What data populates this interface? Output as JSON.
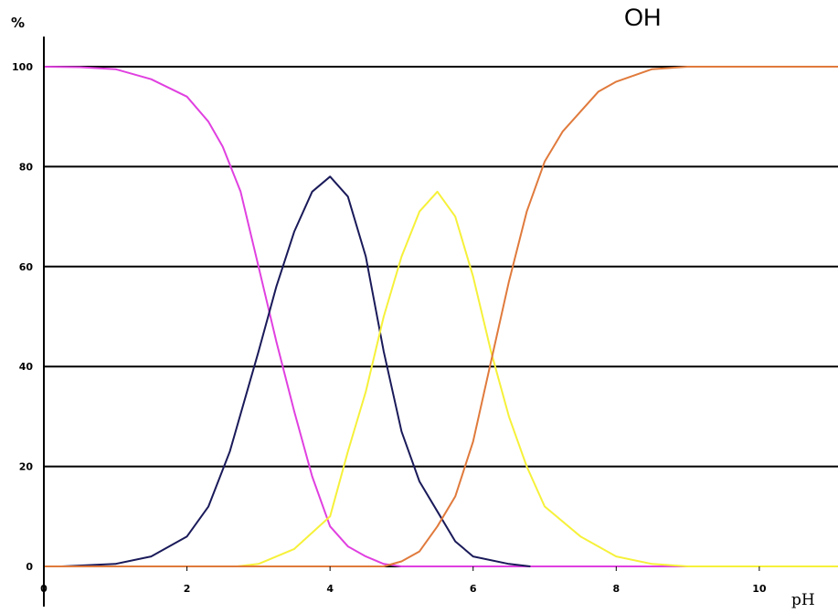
{
  "chart_data": {
    "type": "line",
    "title": "",
    "annotation": "OH",
    "ylabel": "%",
    "xlabel": "pH",
    "xlim": [
      0,
      11.1
    ],
    "ylim": [
      0,
      100
    ],
    "xticks": [
      0,
      2,
      4,
      6,
      8,
      10
    ],
    "yticks": [
      0,
      20,
      40,
      60,
      80,
      100
    ],
    "grid": true,
    "series": [
      {
        "color": "#e040e0",
        "points": [
          [
            0,
            100
          ],
          [
            0.5,
            99.9
          ],
          [
            1,
            99.5
          ],
          [
            1.5,
            97.5
          ],
          [
            2,
            94
          ],
          [
            2.3,
            89
          ],
          [
            2.5,
            84
          ],
          [
            2.75,
            75
          ],
          [
            3,
            60
          ],
          [
            3.25,
            45
          ],
          [
            3.5,
            31
          ],
          [
            3.75,
            18
          ],
          [
            4,
            8
          ],
          [
            4.25,
            4
          ],
          [
            4.5,
            2
          ],
          [
            4.75,
            0.5
          ],
          [
            5,
            0
          ],
          [
            6,
            0
          ],
          [
            7,
            0
          ],
          [
            8,
            0
          ],
          [
            9,
            0
          ],
          [
            9.3,
            0
          ]
        ]
      },
      {
        "color": "#1a1a5a",
        "points": [
          [
            0.25,
            0
          ],
          [
            1,
            0.5
          ],
          [
            1.5,
            2
          ],
          [
            2,
            6
          ],
          [
            2.3,
            12
          ],
          [
            2.6,
            23
          ],
          [
            3,
            43
          ],
          [
            3.25,
            56
          ],
          [
            3.5,
            67
          ],
          [
            3.75,
            75
          ],
          [
            4,
            78
          ],
          [
            4.25,
            74
          ],
          [
            4.5,
            62
          ],
          [
            4.75,
            43
          ],
          [
            5,
            27
          ],
          [
            5.25,
            17
          ],
          [
            5.5,
            11
          ],
          [
            5.75,
            5
          ],
          [
            6,
            2
          ],
          [
            6.5,
            0.5
          ],
          [
            6.8,
            0
          ]
        ]
      },
      {
        "color": "#f6f13a",
        "points": [
          [
            4.4,
            0
          ],
          [
            2.7,
            0
          ],
          [
            3,
            0.5
          ],
          [
            3.5,
            3.5
          ],
          [
            4,
            10
          ],
          [
            4.25,
            23
          ],
          [
            4.5,
            35
          ],
          [
            4.75,
            50
          ],
          [
            5,
            62
          ],
          [
            5.25,
            71
          ],
          [
            5.5,
            75
          ],
          [
            5.75,
            70
          ],
          [
            6,
            58
          ],
          [
            6.25,
            43
          ],
          [
            6.5,
            30
          ],
          [
            6.75,
            20
          ],
          [
            7,
            12
          ],
          [
            7.5,
            6
          ],
          [
            8,
            2
          ],
          [
            8.5,
            0.5
          ],
          [
            9,
            0
          ],
          [
            11.1,
            0
          ]
        ]
      },
      {
        "color": "#e07a3c",
        "points": [
          [
            0,
            0
          ],
          [
            4.75,
            0
          ],
          [
            5,
            1
          ],
          [
            5.25,
            3
          ],
          [
            5.5,
            8
          ],
          [
            5.75,
            14
          ],
          [
            6,
            25
          ],
          [
            6.25,
            41
          ],
          [
            6.5,
            57
          ],
          [
            6.75,
            71
          ],
          [
            7,
            81
          ],
          [
            7.25,
            87
          ],
          [
            7.5,
            91
          ],
          [
            7.75,
            95
          ],
          [
            8,
            97
          ],
          [
            8.5,
            99.5
          ],
          [
            9,
            100
          ],
          [
            11.1,
            100
          ]
        ]
      }
    ]
  }
}
